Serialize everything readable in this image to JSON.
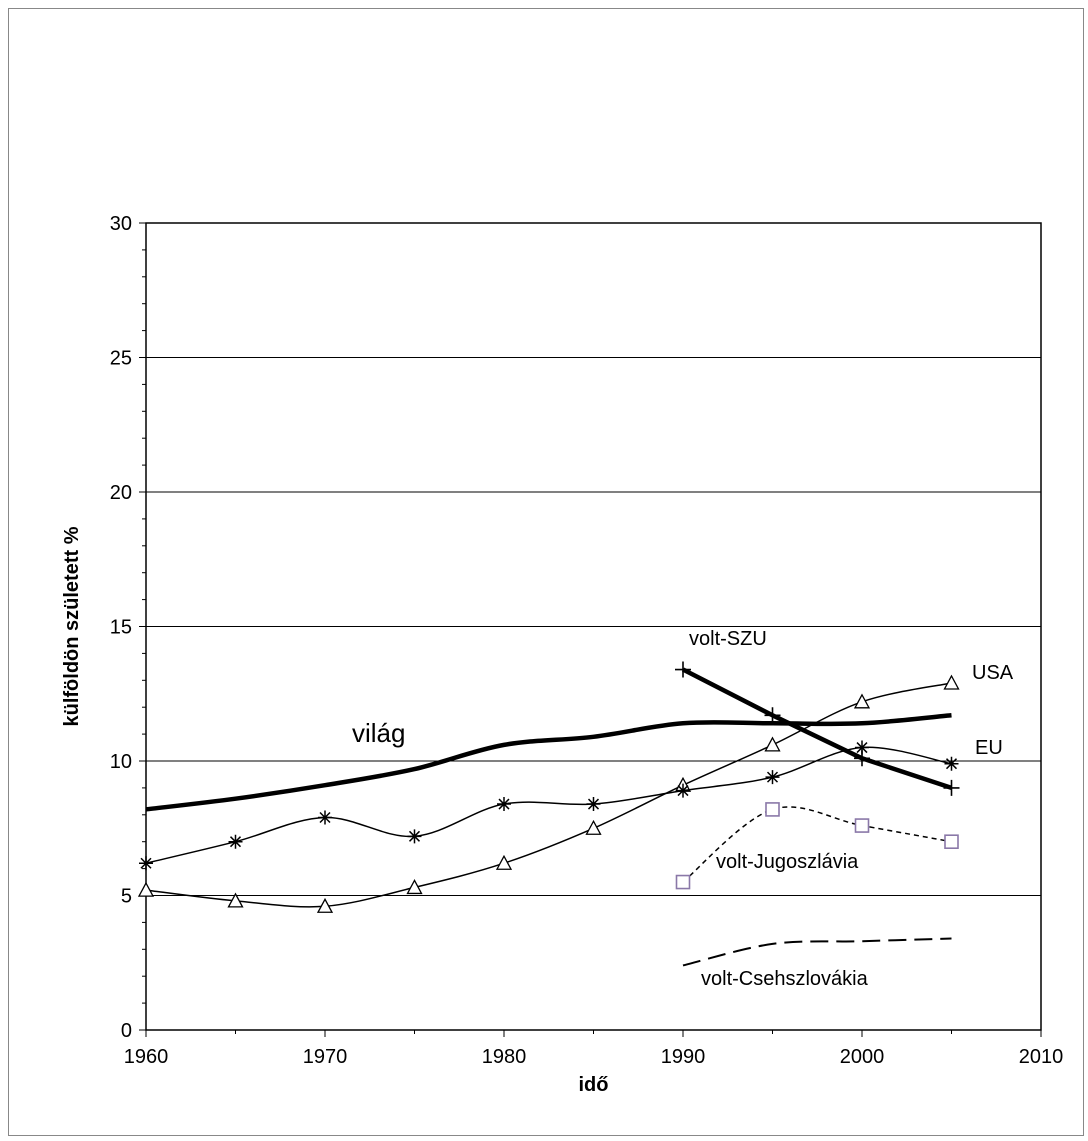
{
  "chart_data": {
    "type": "line",
    "title": "",
    "xlabel": "idő",
    "ylabel": "külföldön született %",
    "xlim": [
      1960,
      2010
    ],
    "ylim": [
      0,
      30
    ],
    "x_ticks": [
      1960,
      1970,
      1980,
      1990,
      2000,
      2010
    ],
    "y_ticks": [
      0,
      5,
      10,
      15,
      20,
      25,
      30
    ],
    "grid": "horizontal",
    "legend": "none",
    "series": [
      {
        "name": "világ",
        "x": [
          1960,
          1965,
          1970,
          1975,
          1980,
          1985,
          1990,
          1995,
          2000,
          2005
        ],
        "values": [
          8.2,
          8.6,
          9.1,
          9.7,
          10.6,
          10.9,
          11.4,
          11.4,
          11.4,
          11.7
        ]
      },
      {
        "name": "volt-SZU",
        "x": [
          1990,
          1995,
          2000,
          2005
        ],
        "values": [
          13.4,
          11.7,
          10.1,
          9.0
        ]
      },
      {
        "name": "USA",
        "x": [
          1960,
          1965,
          1970,
          1975,
          1980,
          1985,
          1990,
          1995,
          2000,
          2005
        ],
        "values": [
          5.2,
          4.8,
          4.6,
          5.3,
          6.2,
          7.5,
          9.1,
          10.6,
          12.2,
          12.9
        ]
      },
      {
        "name": "EU",
        "x": [
          1960,
          1965,
          1970,
          1975,
          1980,
          1985,
          1990,
          1995,
          2000,
          2005
        ],
        "values": [
          6.2,
          7.0,
          7.9,
          7.2,
          8.4,
          8.4,
          8.9,
          9.4,
          10.5,
          9.9
        ]
      },
      {
        "name": "volt-Jugoszlávia",
        "x": [
          1990,
          1995,
          2000,
          2005
        ],
        "values": [
          5.5,
          8.2,
          7.6,
          7.0
        ]
      },
      {
        "name": "volt-Csehszlovákia",
        "x": [
          1990,
          1995,
          2000,
          2005
        ],
        "values": [
          2.4,
          3.2,
          3.3,
          3.4
        ]
      }
    ]
  }
}
